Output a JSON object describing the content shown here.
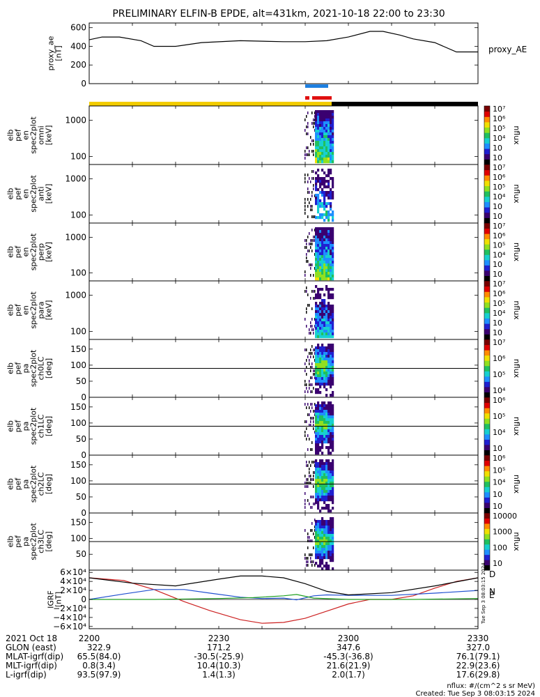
{
  "title": "PRELIMINARY ELFIN-B EPDE, alt=431km, 2021-10-18 22:00 to 23:30",
  "colors": {
    "bar_science": "#f2cc00",
    "bar_eclipse": "#000000",
    "bar_blue": "#1e7fe0",
    "bar_red": "#e01010",
    "trace": "#000000"
  },
  "chart_data": [
    {
      "type": "line",
      "panel": "proxy_ae",
      "ylabel_lines": [
        "proxy_ae",
        "[nT]"
      ],
      "legend": "proxy_AE",
      "ylim": [
        0,
        650
      ],
      "yticks": [
        "600",
        "400",
        "200",
        "0"
      ],
      "ytick_values": [
        600,
        400,
        200,
        0
      ],
      "x_minutes": [
        0,
        3,
        7,
        12,
        15,
        20,
        26,
        35,
        45,
        50,
        55,
        60,
        65,
        68,
        72,
        75,
        80,
        85,
        90
      ],
      "values": [
        470,
        500,
        500,
        460,
        400,
        400,
        440,
        460,
        450,
        450,
        460,
        500,
        560,
        560,
        520,
        480,
        440,
        340,
        340
      ]
    },
    {
      "type": "heatmap",
      "panel": "en_omni",
      "ylabel_lines": [
        "elb",
        "pef",
        "en",
        "spec2plot",
        "omni",
        "[keV]"
      ],
      "ylog": true,
      "ylim": [
        60,
        2500
      ],
      "yticks": [
        "1000",
        "100"
      ],
      "ytick_values": [
        1000,
        100
      ],
      "colorbar": {
        "label": "nflux",
        "ticks": [
          "10⁷",
          "10⁶",
          "10⁵",
          "10⁴",
          "10⁳",
          "10⁲"
        ]
      }
    },
    {
      "type": "heatmap",
      "panel": "en_anti",
      "ylabel_lines": [
        "elb",
        "pef",
        "en",
        "spec2plot",
        "anti",
        "[keV]"
      ],
      "ylog": true,
      "ylim": [
        60,
        2500
      ],
      "yticks": [
        "1000",
        "100"
      ],
      "ytick_values": [
        1000,
        100
      ],
      "colorbar": {
        "label": "nflux",
        "ticks": [
          "10⁷",
          "10⁶",
          "10⁵",
          "10⁴",
          "10⁳",
          "10⁲"
        ]
      }
    },
    {
      "type": "heatmap",
      "panel": "en_perp",
      "ylabel_lines": [
        "elb",
        "pef",
        "en",
        "spec2plot",
        "perp",
        "[keV]"
      ],
      "ylog": true,
      "ylim": [
        60,
        2500
      ],
      "yticks": [
        "1000",
        "100"
      ],
      "ytick_values": [
        1000,
        100
      ],
      "colorbar": {
        "label": "nflux",
        "ticks": [
          "10⁷",
          "10⁶",
          "10⁵",
          "10⁴",
          "10⁳",
          "10⁲"
        ]
      }
    },
    {
      "type": "heatmap",
      "panel": "en_para",
      "ylabel_lines": [
        "elb",
        "pef",
        "en",
        "spec2plot",
        "para",
        "[keV]"
      ],
      "ylog": true,
      "ylim": [
        60,
        2500
      ],
      "yticks": [
        "1000",
        "100"
      ],
      "ytick_values": [
        1000,
        100
      ],
      "colorbar": {
        "label": "nflux",
        "ticks": [
          "10⁷",
          "10⁶",
          "10⁵",
          "10⁴",
          "10⁳",
          "10⁲"
        ]
      }
    },
    {
      "type": "heatmap",
      "panel": "pa_ch0",
      "ylabel_lines": [
        "elb",
        "pef",
        "pa",
        "spec2plot",
        "ch0LC",
        "[deg]"
      ],
      "ylim": [
        0,
        180
      ],
      "yticks": [
        "150",
        "100",
        "50",
        "0"
      ],
      "ytick_values": [
        150,
        100,
        50,
        0
      ],
      "refline": 90,
      "colorbar": {
        "label": "nflux",
        "ticks": [
          "10⁷",
          "10⁶",
          "10⁵",
          "10⁴"
        ]
      }
    },
    {
      "type": "heatmap",
      "panel": "pa_ch1",
      "ylabel_lines": [
        "elb",
        "pef",
        "pa",
        "spec2plot",
        "ch1LC",
        "[deg]"
      ],
      "ylim": [
        0,
        180
      ],
      "yticks": [
        "150",
        "100",
        "50",
        "0"
      ],
      "ytick_values": [
        150,
        100,
        50,
        0
      ],
      "refline": 90,
      "colorbar": {
        "label": "nflux",
        "ticks": [
          "10⁶",
          "10⁵",
          "10⁴",
          "10⁳"
        ]
      }
    },
    {
      "type": "heatmap",
      "panel": "pa_ch2",
      "ylabel_lines": [
        "elb",
        "pef",
        "pa",
        "spec2plot",
        "ch2LC",
        "[deg]"
      ],
      "ylim": [
        0,
        180
      ],
      "yticks": [
        "150",
        "100",
        "50",
        "0"
      ],
      "ytick_values": [
        150,
        100,
        50,
        0
      ],
      "refline": 90,
      "colorbar": {
        "label": "nflux",
        "ticks": [
          "10⁶",
          "10⁵",
          "10⁴",
          "10⁳",
          "10⁲"
        ]
      }
    },
    {
      "type": "heatmap",
      "panel": "pa_ch3",
      "ylabel_lines": [
        "elb",
        "pef",
        "pa",
        "spec2plot",
        "ch3LC",
        "[deg]"
      ],
      "ylim": [
        0,
        180
      ],
      "yticks": [
        "150",
        "100",
        "50"
      ],
      "ytick_values": [
        150,
        100,
        50
      ],
      "refline": 90,
      "colorbar": {
        "label": "nflux",
        "ticks": [
          "10000",
          "1000",
          "100",
          "10"
        ]
      }
    },
    {
      "type": "line",
      "panel": "igrf",
      "ylabel_lines": [
        "IGRF",
        "[nT]"
      ],
      "ylim": [
        -65000,
        65000
      ],
      "yticks": [
        "6×10⁴",
        "4×10⁴",
        "2×10⁴",
        "0",
        "−2×10⁴",
        "−4×10⁴",
        "−6×10⁴"
      ],
      "ytick_values": [
        60000,
        40000,
        20000,
        0,
        -20000,
        -40000,
        -60000
      ],
      "legend": [
        "D",
        "N",
        "E"
      ],
      "series": [
        {
          "name": "D",
          "color": "#cc2020",
          "x_minutes": [
            0,
            8,
            15,
            22,
            28,
            35,
            40,
            45,
            50,
            55,
            60,
            65,
            70,
            75,
            80,
            85,
            90
          ],
          "values": [
            48000,
            42000,
            22000,
            -5000,
            -25000,
            -45000,
            -53000,
            -51000,
            -42000,
            -26000,
            -10000,
            0,
            0,
            8000,
            25000,
            40000,
            48000
          ]
        },
        {
          "name": "N",
          "color": "#2050d0",
          "x_minutes": [
            0,
            8,
            15,
            22,
            28,
            35,
            40,
            45,
            48,
            52,
            55,
            60,
            70,
            80,
            90
          ],
          "values": [
            0,
            12000,
            22000,
            22000,
            14000,
            5000,
            2000,
            3000,
            -1000,
            8000,
            10000,
            9000,
            9000,
            14000,
            20000
          ]
        },
        {
          "name": "E",
          "color": "#20a020",
          "x_minutes": [
            0,
            15,
            30,
            38,
            45,
            48,
            52,
            60,
            75,
            90
          ],
          "values": [
            0,
            0,
            2000,
            4000,
            8000,
            11000,
            3000,
            0,
            0,
            2000
          ]
        },
        {
          "name": "",
          "color": "#000000",
          "x_minutes": [
            0,
            10,
            20,
            30,
            35,
            40,
            45,
            50,
            55,
            60,
            70,
            80,
            90
          ],
          "values": [
            48000,
            36000,
            30000,
            45000,
            52000,
            52000,
            48000,
            35000,
            18000,
            10000,
            15000,
            30000,
            48000
          ]
        }
      ]
    }
  ],
  "footer": {
    "rows": [
      {
        "label": "2021 Oct 18",
        "values": [
          "2200",
          "2230",
          "2300",
          "2330"
        ]
      },
      {
        "label": "GLON (east)",
        "values": [
          "322.9",
          "171.2",
          "347.6",
          "327.0"
        ]
      },
      {
        "label": "MLAT-igrf(dip)",
        "values": [
          "65.5(84.0)",
          "-30.5(-25.9)",
          "-45.3(-36.8)",
          "76.1(79.1)"
        ]
      },
      {
        "label": "MLT-igrf(dip)",
        "values": [
          "0.8(3.4)",
          "10.4(10.3)",
          "21.6(21.9)",
          "22.9(23.6)"
        ]
      },
      {
        "label": "L-igrf(dip)",
        "values": [
          "93.5(97.9)",
          "1.4(1.3)",
          "2.0(1.7)",
          "17.6(29.8)"
        ]
      }
    ],
    "units": "nflux: #/(cm^2 s sr MeV)",
    "created": "Created: Tue Sep  3 08:03:15 2024",
    "side_stamp": "Tue Sep  3 08:03:15 2024"
  }
}
